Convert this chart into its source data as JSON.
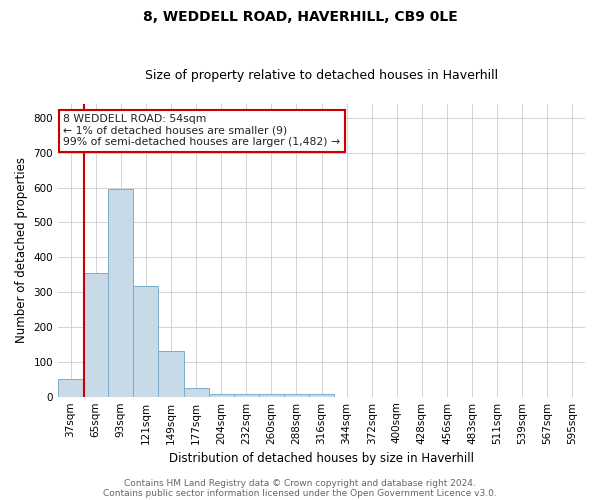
{
  "title": "8, WEDDELL ROAD, HAVERHILL, CB9 0LE",
  "subtitle": "Size of property relative to detached houses in Haverhill",
  "xlabel": "Distribution of detached houses by size in Haverhill",
  "ylabel": "Number of detached properties",
  "footnote1": "Contains HM Land Registry data © Crown copyright and database right 2024.",
  "footnote2": "Contains public sector information licensed under the Open Government Licence v3.0.",
  "categories": [
    "37sqm",
    "65sqm",
    "93sqm",
    "121sqm",
    "149sqm",
    "177sqm",
    "204sqm",
    "232sqm",
    "260sqm",
    "288sqm",
    "316sqm",
    "344sqm",
    "372sqm",
    "400sqm",
    "428sqm",
    "456sqm",
    "483sqm",
    "511sqm",
    "539sqm",
    "567sqm",
    "595sqm"
  ],
  "values": [
    50,
    355,
    595,
    318,
    130,
    25,
    8,
    8,
    8,
    8,
    8,
    0,
    0,
    0,
    0,
    0,
    0,
    0,
    0,
    0,
    0
  ],
  "bar_color": "#c8d9e8",
  "bar_edge_color": "#7aafc8",
  "red_line_x": 0.55,
  "annotation_text": "8 WEDDELL ROAD: 54sqm\n← 1% of detached houses are smaller (9)\n99% of semi-detached houses are larger (1,482) →",
  "annotation_box_color": "#ffffff",
  "annotation_box_edge": "#cc0000",
  "annotation_text_color": "#222222",
  "red_line_color": "#cc0000",
  "ylim": [
    0,
    840
  ],
  "yticks": [
    0,
    100,
    200,
    300,
    400,
    500,
    600,
    700,
    800
  ],
  "grid_color": "#cccccc",
  "background_color": "#ffffff",
  "title_fontsize": 10,
  "subtitle_fontsize": 9,
  "axis_label_fontsize": 8.5,
  "tick_fontsize": 7.5,
  "annotation_fontsize": 7.8,
  "footnote_fontsize": 6.5
}
